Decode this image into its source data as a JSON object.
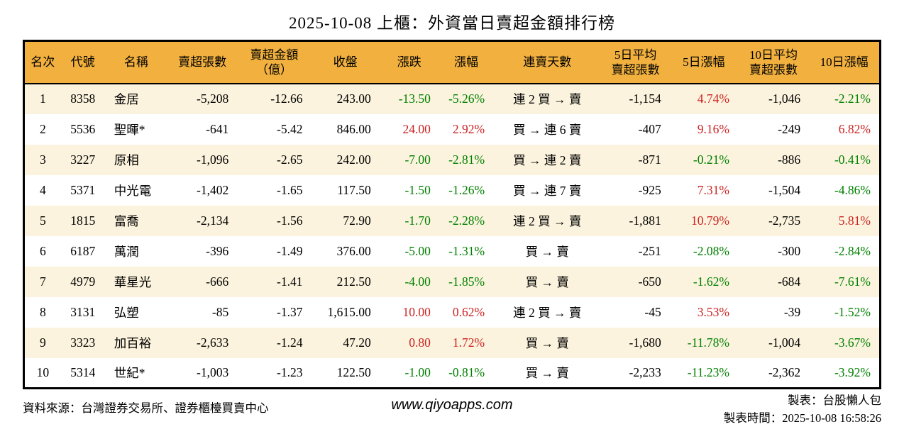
{
  "title": "2025-10-08 上櫃：外資當日賣超金額排行榜",
  "colors": {
    "header_bg": "#f2b13f",
    "row_stripe_bg": "#fbf3dd",
    "up": "#cc2222",
    "down": "#008000",
    "border": "#000000"
  },
  "chart_data": {
    "type": "table",
    "title": "2025-10-08 上櫃：外資當日賣超金額排行榜",
    "columns": [
      {
        "key": "rank",
        "label": "名次",
        "align": "center",
        "colored": false
      },
      {
        "key": "code",
        "label": "代號",
        "align": "center",
        "colored": false
      },
      {
        "key": "name",
        "label": "名稱",
        "align": "left",
        "colored": false
      },
      {
        "key": "sell_volume",
        "label": "賣超張數",
        "align": "right",
        "colored": false
      },
      {
        "key": "sell_amount",
        "label": "賣超金額\n（億）",
        "align": "right",
        "colored": false
      },
      {
        "key": "close",
        "label": "收盤",
        "align": "right",
        "colored": false
      },
      {
        "key": "change",
        "label": "漲跌",
        "align": "right",
        "colored": true
      },
      {
        "key": "change_pct",
        "label": "漲幅",
        "align": "right",
        "colored": true
      },
      {
        "key": "streak",
        "label": "連賣天數",
        "align": "center",
        "colored": false
      },
      {
        "key": "avg5_volume",
        "label": "5日平均\n賣超張數",
        "align": "right",
        "colored": false
      },
      {
        "key": "pct5",
        "label": "5日漲幅",
        "align": "right",
        "colored": true
      },
      {
        "key": "avg10_volume",
        "label": "10日平均\n賣超張數",
        "align": "right",
        "colored": false
      },
      {
        "key": "pct10",
        "label": "10日漲幅",
        "align": "right",
        "colored": true
      }
    ],
    "rows": [
      [
        "1",
        "8358",
        "金居",
        "-5,208",
        "-12.66",
        "243.00",
        "-13.50",
        "-5.26%",
        "連 2 買 → 賣",
        "-1,154",
        "4.74%",
        "-1,046",
        "-2.21%"
      ],
      [
        "2",
        "5536",
        "聖暉*",
        "-641",
        "-5.42",
        "846.00",
        "24.00",
        "2.92%",
        "買 → 連 6 賣",
        "-407",
        "9.16%",
        "-249",
        "6.82%"
      ],
      [
        "3",
        "3227",
        "原相",
        "-1,096",
        "-2.65",
        "242.00",
        "-7.00",
        "-2.81%",
        "買 → 連 2 賣",
        "-871",
        "-0.21%",
        "-886",
        "-0.41%"
      ],
      [
        "4",
        "5371",
        "中光電",
        "-1,402",
        "-1.65",
        "117.50",
        "-1.50",
        "-1.26%",
        "買 → 連 7 賣",
        "-925",
        "7.31%",
        "-1,504",
        "-4.86%"
      ],
      [
        "5",
        "1815",
        "富喬",
        "-2,134",
        "-1.56",
        "72.90",
        "-1.70",
        "-2.28%",
        "連 2 買 → 賣",
        "-1,881",
        "10.79%",
        "-2,735",
        "5.81%"
      ],
      [
        "6",
        "6187",
        "萬潤",
        "-396",
        "-1.49",
        "376.00",
        "-5.00",
        "-1.31%",
        "買 → 賣",
        "-251",
        "-2.08%",
        "-300",
        "-2.84%"
      ],
      [
        "7",
        "4979",
        "華星光",
        "-666",
        "-1.41",
        "212.50",
        "-4.00",
        "-1.85%",
        "買 → 賣",
        "-650",
        "-1.62%",
        "-684",
        "-7.61%"
      ],
      [
        "8",
        "3131",
        "弘塑",
        "-85",
        "-1.37",
        "1,615.00",
        "10.00",
        "0.62%",
        "連 2 買 → 賣",
        "-45",
        "3.53%",
        "-39",
        "-1.52%"
      ],
      [
        "9",
        "3323",
        "加百裕",
        "-2,633",
        "-1.24",
        "47.20",
        "0.80",
        "1.72%",
        "買 → 賣",
        "-1,680",
        "-11.78%",
        "-1,004",
        "-3.67%"
      ],
      [
        "10",
        "5314",
        "世紀*",
        "-1,003",
        "-1.23",
        "122.50",
        "-1.00",
        "-0.81%",
        "買 → 賣",
        "-2,233",
        "-11.23%",
        "-2,362",
        "-3.92%"
      ]
    ]
  },
  "footer": {
    "source": "資料來源：台灣證券交易所、證券櫃檯買賣中心",
    "website": "www.qiyoapps.com",
    "maker": "製表：台股懶人包",
    "made_time": "製表時間：2025-10-08 16:58:26"
  }
}
